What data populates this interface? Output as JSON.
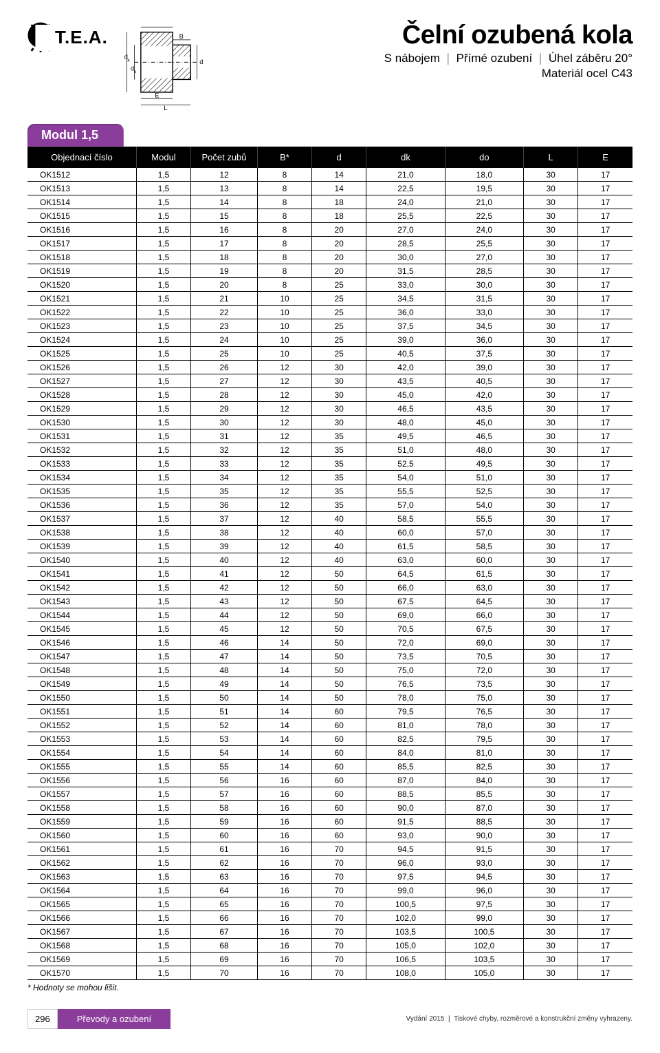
{
  "logo_text": "T.E.A.",
  "title": "Čelní  ozubená kola",
  "subtitle_parts": [
    "S nábojem",
    "Přímé ozubení",
    "Úhel záběru 20°"
  ],
  "subtitle2": "Materiál ocel C43",
  "module_label": "Modul 1,5",
  "diagram_labels": {
    "dk": "d",
    "do": "d",
    "B": "B",
    "d": "d",
    "E": "E",
    "L": "L",
    "k": "k",
    "o": "o"
  },
  "columns": [
    "Objednací číslo",
    "Modul",
    "Počet zubů",
    "B*",
    "d",
    "dk",
    "do",
    "L",
    "E"
  ],
  "col_widths": [
    "18%",
    "9%",
    "11%",
    "9%",
    "9%",
    "13%",
    "13%",
    "9%",
    "9%"
  ],
  "rows": [
    [
      "OK1512",
      "1,5",
      "12",
      "8",
      "14",
      "21,0",
      "18,0",
      "30",
      "17"
    ],
    [
      "OK1513",
      "1,5",
      "13",
      "8",
      "14",
      "22,5",
      "19,5",
      "30",
      "17"
    ],
    [
      "OK1514",
      "1,5",
      "14",
      "8",
      "18",
      "24,0",
      "21,0",
      "30",
      "17"
    ],
    [
      "OK1515",
      "1,5",
      "15",
      "8",
      "18",
      "25,5",
      "22,5",
      "30",
      "17"
    ],
    [
      "OK1516",
      "1,5",
      "16",
      "8",
      "20",
      "27,0",
      "24,0",
      "30",
      "17"
    ],
    [
      "OK1517",
      "1,5",
      "17",
      "8",
      "20",
      "28,5",
      "25,5",
      "30",
      "17"
    ],
    [
      "OK1518",
      "1,5",
      "18",
      "8",
      "20",
      "30,0",
      "27,0",
      "30",
      "17"
    ],
    [
      "OK1519",
      "1,5",
      "19",
      "8",
      "20",
      "31,5",
      "28,5",
      "30",
      "17"
    ],
    [
      "OK1520",
      "1,5",
      "20",
      "8",
      "25",
      "33,0",
      "30,0",
      "30",
      "17"
    ],
    [
      "OK1521",
      "1,5",
      "21",
      "10",
      "25",
      "34,5",
      "31,5",
      "30",
      "17"
    ],
    [
      "OK1522",
      "1,5",
      "22",
      "10",
      "25",
      "36,0",
      "33,0",
      "30",
      "17"
    ],
    [
      "OK1523",
      "1,5",
      "23",
      "10",
      "25",
      "37,5",
      "34,5",
      "30",
      "17"
    ],
    [
      "OK1524",
      "1,5",
      "24",
      "10",
      "25",
      "39,0",
      "36,0",
      "30",
      "17"
    ],
    [
      "OK1525",
      "1,5",
      "25",
      "10",
      "25",
      "40,5",
      "37,5",
      "30",
      "17"
    ],
    [
      "OK1526",
      "1,5",
      "26",
      "12",
      "30",
      "42,0",
      "39,0",
      "30",
      "17"
    ],
    [
      "OK1527",
      "1,5",
      "27",
      "12",
      "30",
      "43,5",
      "40,5",
      "30",
      "17"
    ],
    [
      "OK1528",
      "1,5",
      "28",
      "12",
      "30",
      "45,0",
      "42,0",
      "30",
      "17"
    ],
    [
      "OK1529",
      "1,5",
      "29",
      "12",
      "30",
      "46,5",
      "43,5",
      "30",
      "17"
    ],
    [
      "OK1530",
      "1,5",
      "30",
      "12",
      "30",
      "48,0",
      "45,0",
      "30",
      "17"
    ],
    [
      "OK1531",
      "1,5",
      "31",
      "12",
      "35",
      "49,5",
      "46,5",
      "30",
      "17"
    ],
    [
      "OK1532",
      "1,5",
      "32",
      "12",
      "35",
      "51,0",
      "48,0",
      "30",
      "17"
    ],
    [
      "OK1533",
      "1,5",
      "33",
      "12",
      "35",
      "52,5",
      "49,5",
      "30",
      "17"
    ],
    [
      "OK1534",
      "1,5",
      "34",
      "12",
      "35",
      "54,0",
      "51,0",
      "30",
      "17"
    ],
    [
      "OK1535",
      "1,5",
      "35",
      "12",
      "35",
      "55,5",
      "52,5",
      "30",
      "17"
    ],
    [
      "OK1536",
      "1,5",
      "36",
      "12",
      "35",
      "57,0",
      "54,0",
      "30",
      "17"
    ],
    [
      "OK1537",
      "1,5",
      "37",
      "12",
      "40",
      "58,5",
      "55,5",
      "30",
      "17"
    ],
    [
      "OK1538",
      "1,5",
      "38",
      "12",
      "40",
      "60,0",
      "57,0",
      "30",
      "17"
    ],
    [
      "OK1539",
      "1,5",
      "39",
      "12",
      "40",
      "61,5",
      "58,5",
      "30",
      "17"
    ],
    [
      "OK1540",
      "1,5",
      "40",
      "12",
      "40",
      "63,0",
      "60,0",
      "30",
      "17"
    ],
    [
      "OK1541",
      "1,5",
      "41",
      "12",
      "50",
      "64,5",
      "61,5",
      "30",
      "17"
    ],
    [
      "OK1542",
      "1,5",
      "42",
      "12",
      "50",
      "66,0",
      "63,0",
      "30",
      "17"
    ],
    [
      "OK1543",
      "1,5",
      "43",
      "12",
      "50",
      "67,5",
      "64,5",
      "30",
      "17"
    ],
    [
      "OK1544",
      "1,5",
      "44",
      "12",
      "50",
      "69,0",
      "66,0",
      "30",
      "17"
    ],
    [
      "OK1545",
      "1,5",
      "45",
      "12",
      "50",
      "70,5",
      "67,5",
      "30",
      "17"
    ],
    [
      "OK1546",
      "1,5",
      "46",
      "14",
      "50",
      "72,0",
      "69,0",
      "30",
      "17"
    ],
    [
      "OK1547",
      "1,5",
      "47",
      "14",
      "50",
      "73,5",
      "70,5",
      "30",
      "17"
    ],
    [
      "OK1548",
      "1,5",
      "48",
      "14",
      "50",
      "75,0",
      "72,0",
      "30",
      "17"
    ],
    [
      "OK1549",
      "1,5",
      "49",
      "14",
      "50",
      "76,5",
      "73,5",
      "30",
      "17"
    ],
    [
      "OK1550",
      "1,5",
      "50",
      "14",
      "50",
      "78,0",
      "75,0",
      "30",
      "17"
    ],
    [
      "OK1551",
      "1,5",
      "51",
      "14",
      "60",
      "79,5",
      "76,5",
      "30",
      "17"
    ],
    [
      "OK1552",
      "1,5",
      "52",
      "14",
      "60",
      "81,0",
      "78,0",
      "30",
      "17"
    ],
    [
      "OK1553",
      "1,5",
      "53",
      "14",
      "60",
      "82,5",
      "79,5",
      "30",
      "17"
    ],
    [
      "OK1554",
      "1,5",
      "54",
      "14",
      "60",
      "84,0",
      "81,0",
      "30",
      "17"
    ],
    [
      "OK1555",
      "1,5",
      "55",
      "14",
      "60",
      "85,5",
      "82,5",
      "30",
      "17"
    ],
    [
      "OK1556",
      "1,5",
      "56",
      "16",
      "60",
      "87,0",
      "84,0",
      "30",
      "17"
    ],
    [
      "OK1557",
      "1,5",
      "57",
      "16",
      "60",
      "88,5",
      "85,5",
      "30",
      "17"
    ],
    [
      "OK1558",
      "1,5",
      "58",
      "16",
      "60",
      "90,0",
      "87,0",
      "30",
      "17"
    ],
    [
      "OK1559",
      "1,5",
      "59",
      "16",
      "60",
      "91,5",
      "88,5",
      "30",
      "17"
    ],
    [
      "OK1560",
      "1,5",
      "60",
      "16",
      "60",
      "93,0",
      "90,0",
      "30",
      "17"
    ],
    [
      "OK1561",
      "1,5",
      "61",
      "16",
      "70",
      "94,5",
      "91,5",
      "30",
      "17"
    ],
    [
      "OK1562",
      "1,5",
      "62",
      "16",
      "70",
      "96,0",
      "93,0",
      "30",
      "17"
    ],
    [
      "OK1563",
      "1,5",
      "63",
      "16",
      "70",
      "97,5",
      "94,5",
      "30",
      "17"
    ],
    [
      "OK1564",
      "1,5",
      "64",
      "16",
      "70",
      "99,0",
      "96,0",
      "30",
      "17"
    ],
    [
      "OK1565",
      "1,5",
      "65",
      "16",
      "70",
      "100,5",
      "97,5",
      "30",
      "17"
    ],
    [
      "OK1566",
      "1,5",
      "66",
      "16",
      "70",
      "102,0",
      "99,0",
      "30",
      "17"
    ],
    [
      "OK1567",
      "1,5",
      "67",
      "16",
      "70",
      "103,5",
      "100,5",
      "30",
      "17"
    ],
    [
      "OK1568",
      "1,5",
      "68",
      "16",
      "70",
      "105,0",
      "102,0",
      "30",
      "17"
    ],
    [
      "OK1569",
      "1,5",
      "69",
      "16",
      "70",
      "106,5",
      "103,5",
      "30",
      "17"
    ],
    [
      "OK1570",
      "1,5",
      "70",
      "16",
      "70",
      "108,0",
      "105,0",
      "30",
      "17"
    ]
  ],
  "note": "* Hodnoty se mohou lišit.",
  "footer": {
    "page": "296",
    "category": "Převody a ozubení",
    "right": "Vydání 2015 ❘ Tiskové chyby, rozměrové a konstrukční změny vyhrazeny."
  },
  "colors": {
    "accent": "#8b3d9c",
    "header_bg": "#000000",
    "header_fg": "#ffffff",
    "border": "#000000"
  }
}
